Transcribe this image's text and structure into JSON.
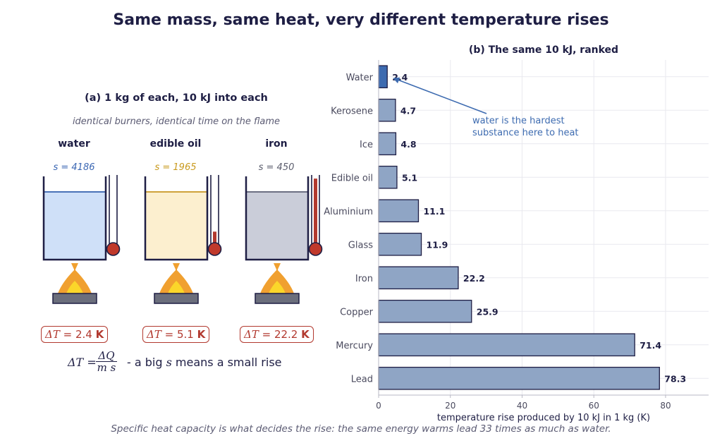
{
  "title": "Same mass, same heat, very different temperature rises",
  "footer": "Specific heat capacity is what decides the rise: the same energy warms lead 33 times as much as water.",
  "left_panel": {
    "title": "(a) 1 kg of each, 10 kJ into each",
    "subtitle": "identical burners, identical time on the flame",
    "columns": [
      {
        "name": "water",
        "s_label": "s = 4186",
        "dT_value": "2.4",
        "dT_unit": "K",
        "liquid": "#cfe0f8",
        "line": "#4a72b8",
        "text_color": "#3b67b3",
        "thermo_level": 0.05
      },
      {
        "name": "edible oil",
        "s_label": "s = 1965",
        "dT_value": "5.1",
        "dT_unit": "K",
        "liquid": "#fcefcf",
        "line": "#cfa23b",
        "text_color": "#c99a1e",
        "thermo_level": 0.22
      },
      {
        "name": "iron",
        "s_label": "s = 450",
        "dT_value": "22.2",
        "dT_unit": "K",
        "liquid": "#cacdd9",
        "line": "#6c6f82",
        "text_color": "#5c5e6e",
        "thermo_level": 0.95
      }
    ],
    "formula": {
      "lhs": "ΔT =",
      "num": "ΔQ",
      "den": "m s",
      "rhs_pre": "- a big ",
      "rhs_var": "s",
      "rhs_post": " means a small rise"
    }
  },
  "chart_data": {
    "type": "bar",
    "orientation": "horizontal",
    "title": "(b) The same 10 kJ, ranked",
    "categories": [
      "Water",
      "Kerosene",
      "Ice",
      "Edible oil",
      "Aluminium",
      "Glass",
      "Iron",
      "Copper",
      "Mercury",
      "Lead"
    ],
    "values": [
      2.4,
      4.7,
      4.8,
      5.1,
      11.1,
      11.9,
      22.2,
      25.9,
      71.4,
      78.3
    ],
    "highlight_index": 0,
    "xlabel": "temperature rise produced by 10 kJ in 1 kg  (K)",
    "ylabel": "",
    "xlim": [
      0,
      92
    ],
    "xticks": [
      0,
      20,
      40,
      60,
      80
    ],
    "grid": true,
    "colors": {
      "bar": "#8fa5c5",
      "highlight": "#3d6bb0",
      "edge": "#1e1e44",
      "annotation": "#3d6bb0"
    },
    "annotation": {
      "text_lines": [
        "water is the hardest",
        "substance here to heat"
      ],
      "target_category": "Water"
    }
  }
}
